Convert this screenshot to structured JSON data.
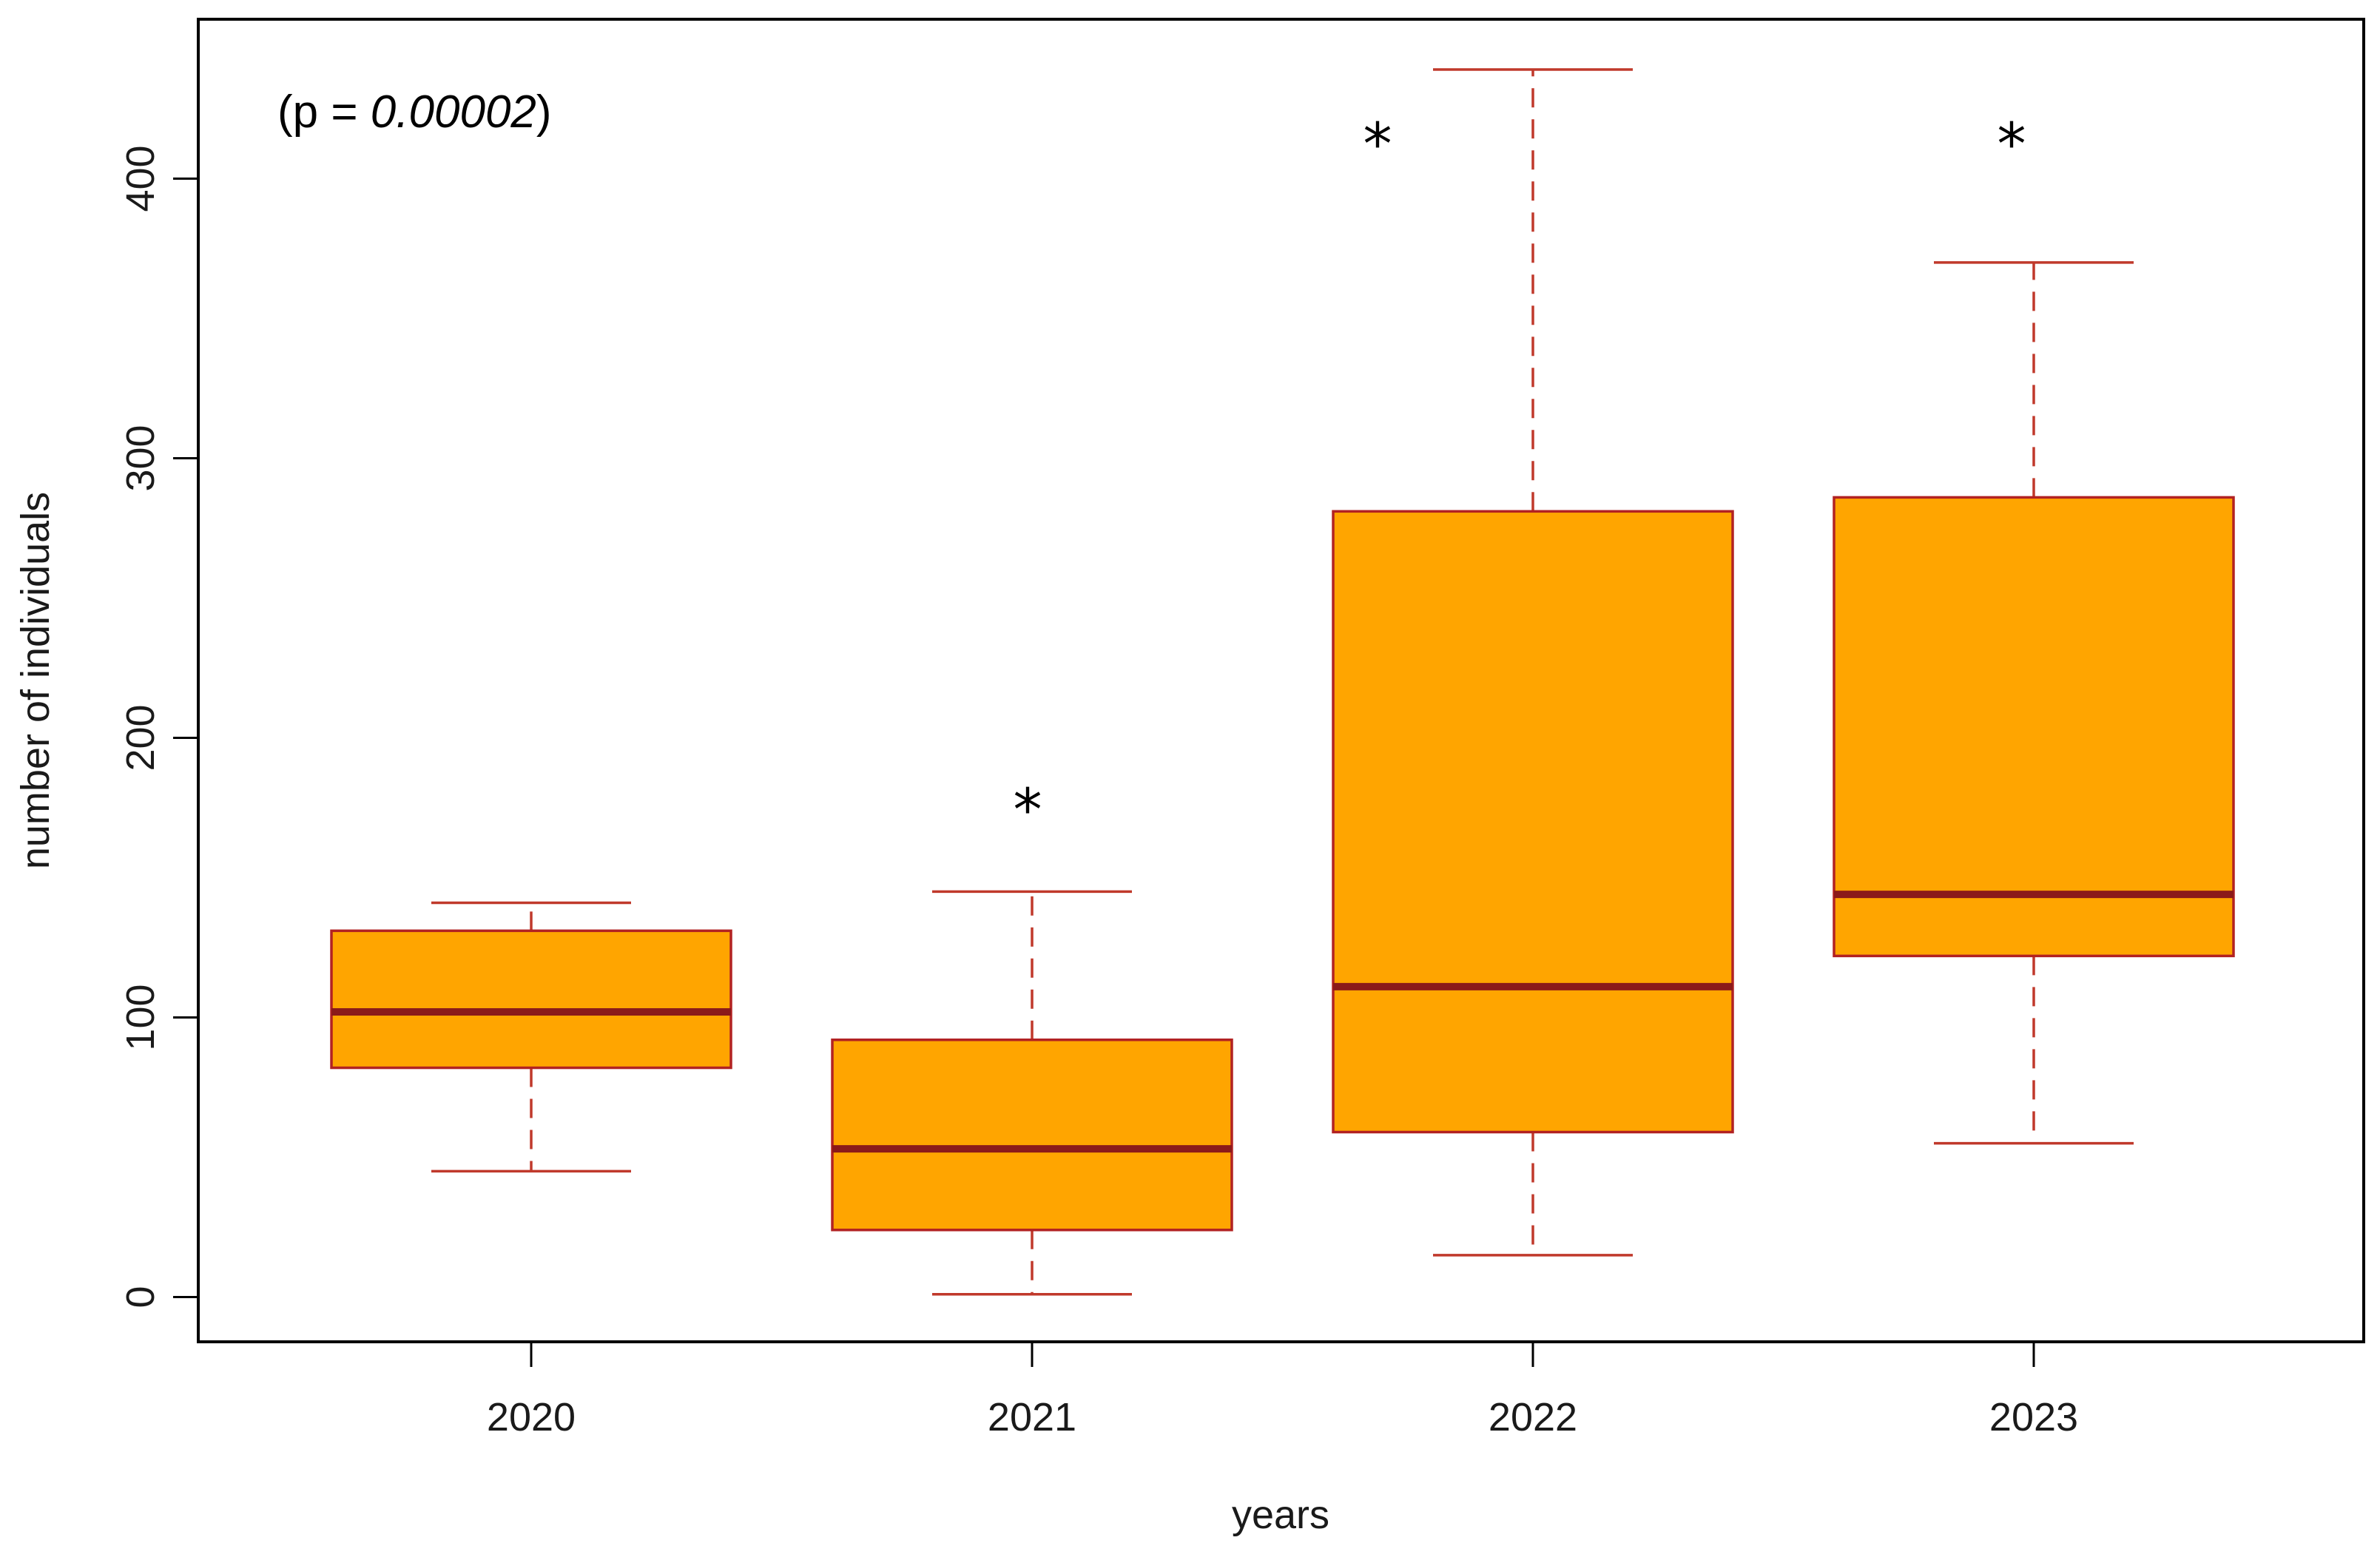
{
  "chart_data": {
    "type": "box",
    "categories": [
      "2020",
      "2021",
      "2022",
      "2023"
    ],
    "boxes": [
      {
        "category": "2020",
        "whisker_low": 45,
        "q1": 82,
        "median": 102,
        "q3": 131,
        "whisker_high": 141,
        "marker": ""
      },
      {
        "category": "2021",
        "whisker_low": 1,
        "q1": 24,
        "median": 53,
        "q3": 92,
        "whisker_high": 145,
        "marker": "*"
      },
      {
        "category": "2022",
        "whisker_low": 15,
        "q1": 59,
        "median": 111,
        "q3": 281,
        "whisker_high": 439,
        "marker": "*"
      },
      {
        "category": "2023",
        "whisker_low": 55,
        "q1": 122,
        "median": 144,
        "q3": 286,
        "whisker_high": 370,
        "marker": "*"
      }
    ],
    "yticks": [
      0,
      100,
      200,
      300,
      400
    ],
    "ylim": [
      -16,
      457
    ],
    "xlabel": "years",
    "ylabel": "number of individuals",
    "annotation": {
      "prefix": "(p = ",
      "value": "0.00002",
      "suffix": ")"
    },
    "colors": {
      "box_fill": "#FFA500",
      "box_border": "#B22222",
      "median": "#8B1A1A",
      "whisker": "#C0392B",
      "axis": "#000000"
    },
    "grid": false
  }
}
